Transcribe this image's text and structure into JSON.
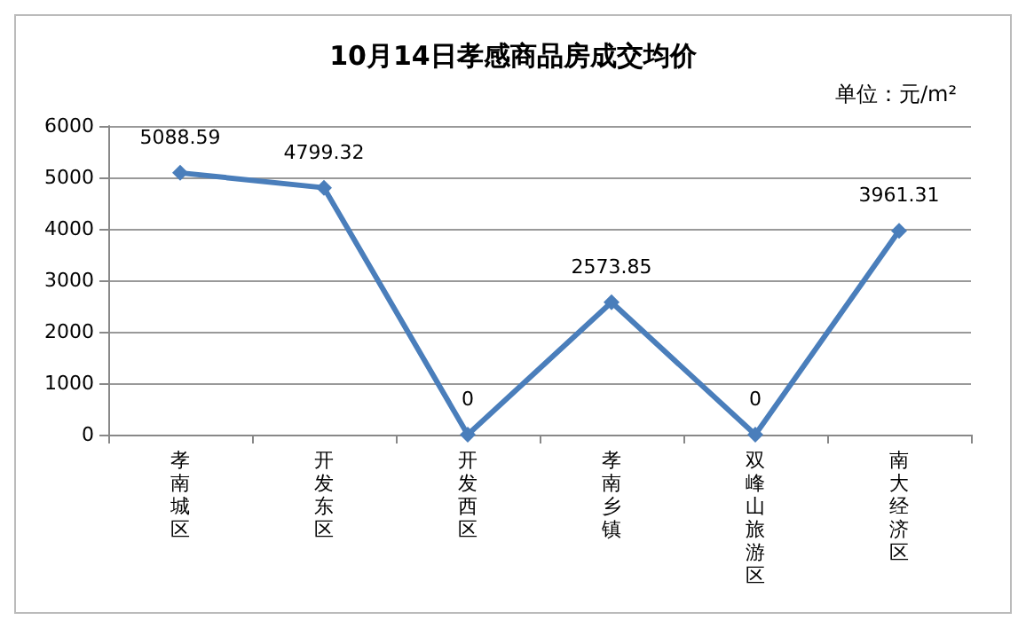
{
  "chart_data": {
    "type": "line",
    "title": "10月14日孝感商品房成交均价",
    "annotations": [
      "单位：元/m²"
    ],
    "categories": [
      "孝南城区",
      "开发东区",
      "开发西区",
      "孝南乡镇",
      "双峰山旅游区",
      "南大经济区"
    ],
    "values": [
      5088.59,
      4799.32,
      0,
      2573.85,
      0,
      3961.31
    ],
    "color": "#4a7ebb",
    "ylim": [
      0,
      6000
    ],
    "yticks": [
      0,
      1000,
      2000,
      3000,
      4000,
      5000,
      6000
    ],
    "grid": "y",
    "marker": "diamond",
    "line_style": "solid",
    "data_labels": true
  }
}
